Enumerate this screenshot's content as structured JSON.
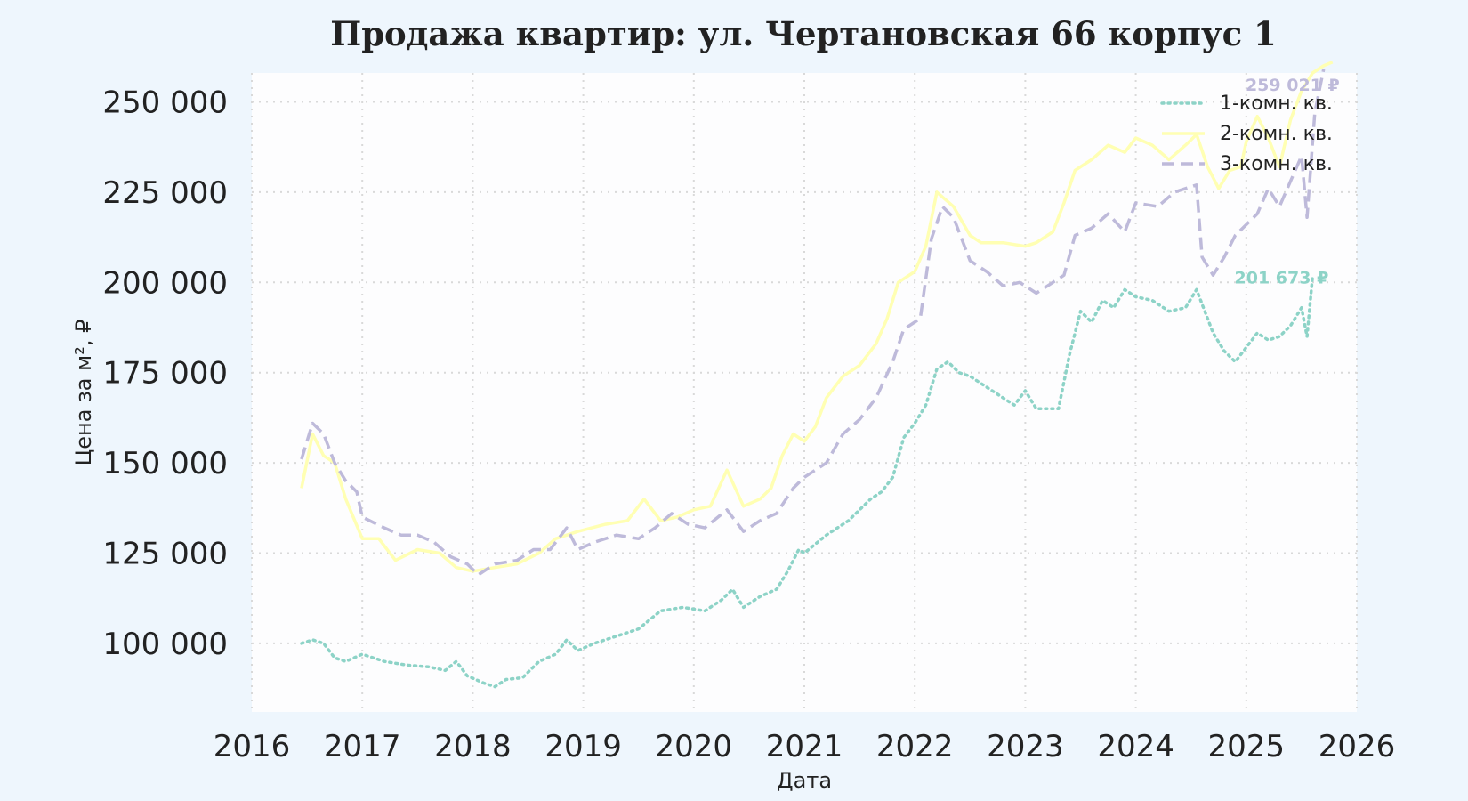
{
  "chart_data": {
    "type": "line",
    "title": "Продажа квартир: ул. Чертановская 66 корпус 1",
    "xlabel": "Дата",
    "ylabel": "Цена за м², ₽",
    "x_ticks": [
      "2016",
      "2017",
      "2018",
      "2019",
      "2020",
      "2021",
      "2022",
      "2023",
      "2024",
      "2025",
      "2026"
    ],
    "y_ticks": [
      "100 000",
      "125 000",
      "150 000",
      "175 000",
      "200 000",
      "225 000",
      "250 000"
    ],
    "y_tick_values": [
      100000,
      125000,
      150000,
      175000,
      200000,
      225000,
      250000
    ],
    "xlim": [
      2016.0,
      2026.0
    ],
    "ylim": [
      81000,
      258000
    ],
    "grid": true,
    "legend_position": "top-right",
    "series": [
      {
        "name": "1-комн. кв.",
        "color": "#8dd3c7",
        "style": "dotted",
        "end_label": "201 673 ₽",
        "points": [
          [
            2016.45,
            100000
          ],
          [
            2016.55,
            101000
          ],
          [
            2016.65,
            100000
          ],
          [
            2016.75,
            96000
          ],
          [
            2016.85,
            95000
          ],
          [
            2017.0,
            97000
          ],
          [
            2017.2,
            95000
          ],
          [
            2017.4,
            94000
          ],
          [
            2017.6,
            93500
          ],
          [
            2017.75,
            92500
          ],
          [
            2017.85,
            95000
          ],
          [
            2017.95,
            91000
          ],
          [
            2018.1,
            89000
          ],
          [
            2018.2,
            88000
          ],
          [
            2018.3,
            90000
          ],
          [
            2018.45,
            90500
          ],
          [
            2018.6,
            95000
          ],
          [
            2018.75,
            97000
          ],
          [
            2018.85,
            101000
          ],
          [
            2018.95,
            98000
          ],
          [
            2019.1,
            100000
          ],
          [
            2019.3,
            102000
          ],
          [
            2019.5,
            104000
          ],
          [
            2019.7,
            109000
          ],
          [
            2019.9,
            110000
          ],
          [
            2020.1,
            109000
          ],
          [
            2020.25,
            112000
          ],
          [
            2020.35,
            115000
          ],
          [
            2020.45,
            110000
          ],
          [
            2020.6,
            113000
          ],
          [
            2020.75,
            115000
          ],
          [
            2020.85,
            120000
          ],
          [
            2020.95,
            126000
          ],
          [
            2021.0,
            125000
          ],
          [
            2021.2,
            130000
          ],
          [
            2021.4,
            134000
          ],
          [
            2021.6,
            140000
          ],
          [
            2021.7,
            142000
          ],
          [
            2021.8,
            146000
          ],
          [
            2021.9,
            157000
          ],
          [
            2022.0,
            161000
          ],
          [
            2022.1,
            166000
          ],
          [
            2022.2,
            176000
          ],
          [
            2022.3,
            178000
          ],
          [
            2022.4,
            175000
          ],
          [
            2022.5,
            174000
          ],
          [
            2022.6,
            172000
          ],
          [
            2022.8,
            168000
          ],
          [
            2022.9,
            166000
          ],
          [
            2023.0,
            170000
          ],
          [
            2023.1,
            165000
          ],
          [
            2023.3,
            165000
          ],
          [
            2023.4,
            180000
          ],
          [
            2023.5,
            192000
          ],
          [
            2023.6,
            189000
          ],
          [
            2023.7,
            195000
          ],
          [
            2023.8,
            193000
          ],
          [
            2023.9,
            198000
          ],
          [
            2024.0,
            196000
          ],
          [
            2024.15,
            195000
          ],
          [
            2024.3,
            192000
          ],
          [
            2024.45,
            193000
          ],
          [
            2024.55,
            198000
          ],
          [
            2024.7,
            186000
          ],
          [
            2024.8,
            181000
          ],
          [
            2024.9,
            178000
          ],
          [
            2025.0,
            182000
          ],
          [
            2025.1,
            186000
          ],
          [
            2025.2,
            184000
          ],
          [
            2025.3,
            185000
          ],
          [
            2025.4,
            188000
          ],
          [
            2025.5,
            193000
          ],
          [
            2025.55,
            185000
          ],
          [
            2025.6,
            201673
          ]
        ]
      },
      {
        "name": "2-комн. кв.",
        "color": "#ffffb3",
        "style": "solid",
        "end_label": "",
        "points": [
          [
            2016.45,
            143000
          ],
          [
            2016.55,
            158000
          ],
          [
            2016.65,
            152000
          ],
          [
            2016.75,
            150000
          ],
          [
            2016.85,
            140000
          ],
          [
            2017.0,
            129000
          ],
          [
            2017.15,
            129000
          ],
          [
            2017.3,
            123000
          ],
          [
            2017.5,
            126000
          ],
          [
            2017.7,
            125000
          ],
          [
            2017.85,
            121000
          ],
          [
            2018.0,
            120000
          ],
          [
            2018.2,
            121000
          ],
          [
            2018.4,
            122000
          ],
          [
            2018.6,
            125000
          ],
          [
            2018.75,
            129000
          ],
          [
            2018.95,
            131000
          ],
          [
            2019.2,
            133000
          ],
          [
            2019.4,
            134000
          ],
          [
            2019.55,
            140000
          ],
          [
            2019.7,
            134000
          ],
          [
            2019.85,
            135000
          ],
          [
            2020.0,
            137000
          ],
          [
            2020.15,
            138000
          ],
          [
            2020.3,
            148000
          ],
          [
            2020.45,
            138000
          ],
          [
            2020.6,
            140000
          ],
          [
            2020.7,
            143000
          ],
          [
            2020.8,
            152000
          ],
          [
            2020.9,
            158000
          ],
          [
            2021.0,
            156000
          ],
          [
            2021.1,
            160000
          ],
          [
            2021.2,
            168000
          ],
          [
            2021.35,
            174000
          ],
          [
            2021.5,
            177000
          ],
          [
            2021.65,
            183000
          ],
          [
            2021.75,
            190000
          ],
          [
            2021.85,
            200000
          ],
          [
            2022.0,
            203000
          ],
          [
            2022.1,
            210000
          ],
          [
            2022.2,
            225000
          ],
          [
            2022.35,
            221000
          ],
          [
            2022.5,
            213000
          ],
          [
            2022.6,
            211000
          ],
          [
            2022.8,
            211000
          ],
          [
            2023.0,
            210000
          ],
          [
            2023.1,
            211000
          ],
          [
            2023.25,
            214000
          ],
          [
            2023.35,
            222000
          ],
          [
            2023.45,
            231000
          ],
          [
            2023.6,
            234000
          ],
          [
            2023.75,
            238000
          ],
          [
            2023.9,
            236000
          ],
          [
            2024.0,
            240000
          ],
          [
            2024.15,
            238000
          ],
          [
            2024.3,
            234000
          ],
          [
            2024.45,
            238000
          ],
          [
            2024.55,
            241000
          ],
          [
            2024.65,
            232000
          ],
          [
            2024.75,
            226000
          ],
          [
            2024.85,
            231000
          ],
          [
            2024.95,
            232000
          ],
          [
            2025.0,
            239000
          ],
          [
            2025.1,
            246000
          ],
          [
            2025.2,
            240000
          ],
          [
            2025.3,
            232000
          ],
          [
            2025.4,
            245000
          ],
          [
            2025.5,
            253000
          ],
          [
            2025.6,
            258000
          ],
          [
            2025.7,
            260000
          ],
          [
            2025.78,
            261000
          ]
        ]
      },
      {
        "name": "3-комн. кв.",
        "color": "#bebada",
        "style": "dashed",
        "end_label": "259 021 ₽",
        "points": [
          [
            2016.45,
            151000
          ],
          [
            2016.55,
            161000
          ],
          [
            2016.65,
            158000
          ],
          [
            2016.75,
            150000
          ],
          [
            2016.85,
            145000
          ],
          [
            2016.95,
            142000
          ],
          [
            2017.0,
            135000
          ],
          [
            2017.2,
            132000
          ],
          [
            2017.35,
            130000
          ],
          [
            2017.5,
            130000
          ],
          [
            2017.65,
            128000
          ],
          [
            2017.8,
            124000
          ],
          [
            2017.95,
            122000
          ],
          [
            2018.05,
            119000
          ],
          [
            2018.2,
            122000
          ],
          [
            2018.4,
            123000
          ],
          [
            2018.55,
            126000
          ],
          [
            2018.7,
            126000
          ],
          [
            2018.85,
            132000
          ],
          [
            2018.95,
            126000
          ],
          [
            2019.1,
            128000
          ],
          [
            2019.3,
            130000
          ],
          [
            2019.5,
            129000
          ],
          [
            2019.65,
            132000
          ],
          [
            2019.8,
            136000
          ],
          [
            2019.95,
            133000
          ],
          [
            2020.1,
            132000
          ],
          [
            2020.3,
            137000
          ],
          [
            2020.45,
            131000
          ],
          [
            2020.6,
            134000
          ],
          [
            2020.75,
            136000
          ],
          [
            2020.9,
            143000
          ],
          [
            2021.0,
            146000
          ],
          [
            2021.2,
            150000
          ],
          [
            2021.35,
            158000
          ],
          [
            2021.5,
            162000
          ],
          [
            2021.65,
            168000
          ],
          [
            2021.8,
            178000
          ],
          [
            2021.9,
            187000
          ],
          [
            2022.05,
            190000
          ],
          [
            2022.15,
            212000
          ],
          [
            2022.25,
            221000
          ],
          [
            2022.35,
            218000
          ],
          [
            2022.5,
            206000
          ],
          [
            2022.65,
            203000
          ],
          [
            2022.8,
            199000
          ],
          [
            2022.95,
            200000
          ],
          [
            2023.1,
            197000
          ],
          [
            2023.25,
            200000
          ],
          [
            2023.35,
            202000
          ],
          [
            2023.45,
            213000
          ],
          [
            2023.6,
            215000
          ],
          [
            2023.75,
            219000
          ],
          [
            2023.9,
            214000
          ],
          [
            2024.0,
            222000
          ],
          [
            2024.2,
            221000
          ],
          [
            2024.35,
            225000
          ],
          [
            2024.55,
            227000
          ],
          [
            2024.6,
            207000
          ],
          [
            2024.7,
            202000
          ],
          [
            2024.8,
            207000
          ],
          [
            2024.9,
            213000
          ],
          [
            2025.0,
            216000
          ],
          [
            2025.1,
            219000
          ],
          [
            2025.2,
            226000
          ],
          [
            2025.3,
            221000
          ],
          [
            2025.4,
            228000
          ],
          [
            2025.5,
            235000
          ],
          [
            2025.55,
            218000
          ],
          [
            2025.62,
            247000
          ],
          [
            2025.7,
            259021
          ]
        ]
      }
    ]
  }
}
